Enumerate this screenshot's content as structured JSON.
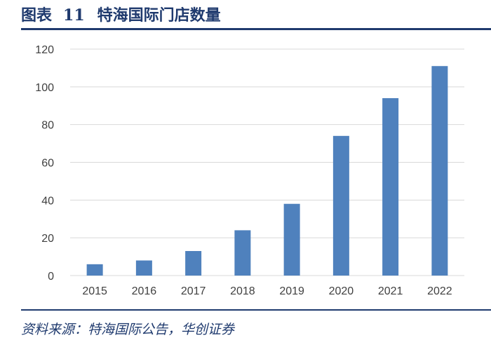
{
  "figure": {
    "label": "图表",
    "number": "11",
    "title": "特海国际门店数量"
  },
  "source": "资料来源：特海国际公告，华创证券",
  "chart_data": {
    "type": "bar",
    "categories": [
      "2015",
      "2016",
      "2017",
      "2018",
      "2019",
      "2020",
      "2021",
      "2022"
    ],
    "values": [
      6,
      8,
      13,
      24,
      38,
      74,
      94,
      111
    ],
    "ylim": [
      0,
      120
    ],
    "yticks": [
      0,
      20,
      40,
      60,
      80,
      100,
      120
    ],
    "grid": true,
    "bar_color": "#4f81bd",
    "grid_color": "#d9d9d9",
    "legend": "none"
  }
}
